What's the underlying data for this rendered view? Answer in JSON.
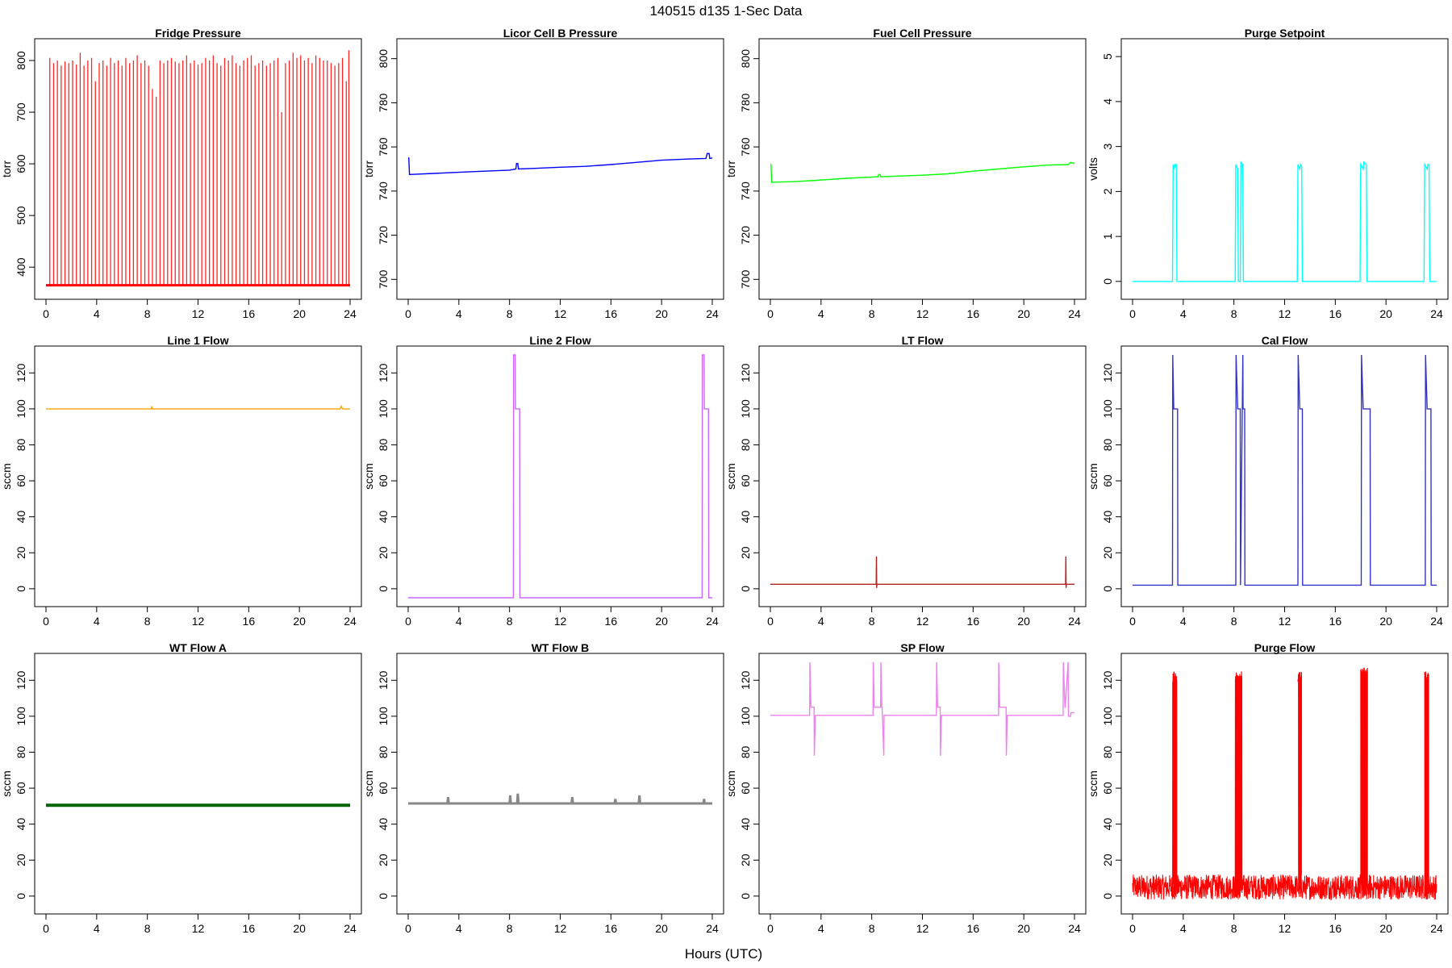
{
  "page": {
    "title": "140515   d135   1-Sec Data",
    "xlabel": "Hours (UTC)"
  },
  "chart_data": [
    {
      "type": "line",
      "title": "Fridge Pressure",
      "ylabel": "torr",
      "color": "#ff0000",
      "xlim": [
        0,
        24
      ],
      "ylim": [
        355,
        825
      ],
      "xticks": [
        "0",
        "4",
        "8",
        "12",
        "16",
        "20",
        "24"
      ],
      "yticks": [
        400,
        500,
        600,
        700,
        800
      ],
      "pattern": "repeating spikes from ~365 torr baseline to ~800 torr, roughly 4 per hour",
      "series": [
        {
          "x": [
            0,
            24
          ],
          "y": [
            365,
            365
          ],
          "kind": "baseline"
        }
      ],
      "spikes": {
        "x": [
          0.3,
          0.6,
          0.9,
          1.2,
          1.5,
          1.8,
          2.1,
          2.4,
          2.7,
          3.0,
          3.3,
          3.6,
          3.9,
          4.2,
          4.5,
          4.8,
          5.1,
          5.4,
          5.7,
          6.0,
          6.3,
          6.6,
          6.9,
          7.2,
          7.5,
          7.8,
          8.1,
          8.4,
          8.7,
          9.0,
          9.3,
          9.6,
          9.9,
          10.2,
          10.5,
          10.8,
          11.1,
          11.4,
          11.7,
          12.0,
          12.3,
          12.6,
          12.9,
          13.2,
          13.5,
          13.8,
          14.1,
          14.4,
          14.7,
          15.0,
          15.3,
          15.6,
          15.9,
          16.2,
          16.5,
          16.8,
          17.1,
          17.4,
          17.7,
          18.0,
          18.3,
          18.6,
          18.9,
          19.2,
          19.5,
          19.8,
          20.1,
          20.4,
          20.7,
          21.0,
          21.3,
          21.6,
          21.9,
          22.2,
          22.5,
          22.8,
          23.1,
          23.4,
          23.7,
          23.9
        ],
        "y": [
          805,
          795,
          800,
          790,
          798,
          795,
          800,
          792,
          815,
          790,
          800,
          805,
          760,
          795,
          800,
          790,
          805,
          795,
          800,
          790,
          805,
          795,
          800,
          810,
          795,
          800,
          790,
          745,
          730,
          800,
          795,
          800,
          805,
          798,
          795,
          800,
          810,
          795,
          800,
          792,
          795,
          805,
          800,
          810,
          795,
          790,
          805,
          800,
          810,
          795,
          790,
          800,
          805,
          810,
          790,
          795,
          800,
          790,
          795,
          800,
          805,
          700,
          795,
          800,
          815,
          805,
          810,
          800,
          805,
          795,
          810,
          805,
          800,
          800,
          795,
          790,
          795,
          805,
          760,
          820
        ]
      }
    },
    {
      "type": "line",
      "title": "Licor Cell B Pressure",
      "ylabel": "torr",
      "color": "#0000ff",
      "xlim": [
        0,
        24
      ],
      "ylim": [
        695,
        805
      ],
      "xticks": [
        "0",
        "4",
        "8",
        "12",
        "16",
        "20",
        "24"
      ],
      "yticks": [
        700,
        720,
        740,
        760,
        780,
        800
      ],
      "series": [
        {
          "x": [
            0,
            0.05,
            0.1,
            2,
            4,
            6,
            8,
            8.5,
            8.55,
            8.65,
            8.7,
            10,
            12,
            14,
            16,
            18,
            20,
            22,
            23.5,
            23.6,
            23.75,
            23.8,
            24
          ],
          "y": [
            755,
            755,
            747.5,
            748,
            748.5,
            749,
            749.5,
            750,
            752.5,
            752.5,
            750,
            750.3,
            750.8,
            751.2,
            752,
            753,
            754,
            754.5,
            754.8,
            757,
            757,
            754.8,
            755
          ]
        }
      ]
    },
    {
      "type": "line",
      "title": "Fuel Cell Pressure",
      "ylabel": "torr",
      "color": "#00ff00",
      "xlim": [
        0,
        24
      ],
      "ylim": [
        695,
        805
      ],
      "xticks": [
        "0",
        "4",
        "8",
        "12",
        "16",
        "20",
        "24"
      ],
      "yticks": [
        700,
        720,
        740,
        760,
        780,
        800
      ],
      "series": [
        {
          "x": [
            0,
            0.05,
            0.1,
            2,
            4,
            6,
            8,
            8.5,
            8.55,
            8.65,
            8.7,
            10,
            12,
            14,
            16,
            18,
            20,
            22,
            23.5,
            23.7,
            24
          ],
          "y": [
            752,
            752,
            744,
            744.3,
            745,
            745.8,
            746.3,
            746.5,
            747.5,
            747.5,
            746.5,
            746.8,
            747.2,
            747.8,
            749,
            750,
            751,
            751.8,
            752,
            753,
            752.5
          ]
        }
      ]
    },
    {
      "type": "line",
      "title": "Purge Setpoint",
      "ylabel": "volts",
      "color": "#00ffff",
      "xlim": [
        0,
        24
      ],
      "ylim": [
        -0.2,
        5.2
      ],
      "xticks": [
        "0",
        "4",
        "8",
        "12",
        "16",
        "20",
        "24"
      ],
      "yticks": [
        0,
        1,
        2,
        3,
        4,
        5
      ],
      "series": [
        {
          "x": [
            0,
            3.15,
            3.2,
            3.3,
            3.35,
            3.45,
            3.5,
            8.1,
            8.15,
            8.3,
            8.35,
            8.5,
            8.55,
            8.7,
            8.75,
            13.0,
            13.05,
            13.2,
            13.25,
            13.35,
            13.4,
            17.95,
            18.0,
            18.2,
            18.25,
            18.45,
            18.5,
            23.0,
            23.05,
            23.25,
            23.3,
            23.4,
            23.45,
            24
          ],
          "y": [
            0,
            0,
            2.6,
            2.5,
            2.6,
            2.6,
            0,
            0,
            2.6,
            2.5,
            0,
            0,
            2.65,
            2.6,
            0,
            0,
            2.6,
            2.5,
            2.6,
            2.55,
            0,
            0,
            2.6,
            2.5,
            2.65,
            2.6,
            0,
            0,
            2.6,
            2.5,
            2.6,
            2.6,
            0,
            0
          ]
        }
      ]
    },
    {
      "type": "line",
      "title": "Line 1 Flow",
      "ylabel": "sccm",
      "color": "#ffa500",
      "xlim": [
        0,
        24
      ],
      "ylim": [
        -5,
        130
      ],
      "xticks": [
        "0",
        "4",
        "8",
        "12",
        "16",
        "20",
        "24"
      ],
      "yticks": [
        0,
        20,
        40,
        60,
        80,
        100,
        120
      ],
      "series": [
        {
          "x": [
            0,
            8.3,
            8.35,
            8.4,
            12,
            16,
            20,
            23.2,
            23.3,
            23.4,
            24
          ],
          "y": [
            100,
            100,
            101.5,
            100,
            100,
            100,
            100,
            100,
            101.5,
            100,
            100
          ]
        }
      ]
    },
    {
      "type": "line",
      "title": "Line 2 Flow",
      "ylabel": "sccm",
      "color": "#cc66ff",
      "xlim": [
        0,
        24
      ],
      "ylim": [
        -5,
        130
      ],
      "xticks": [
        "0",
        "4",
        "8",
        "12",
        "16",
        "20",
        "24"
      ],
      "yticks": [
        0,
        20,
        40,
        60,
        80,
        100,
        120
      ],
      "series": [
        {
          "x": [
            0,
            8.3,
            8.32,
            8.45,
            8.47,
            8.8,
            8.82,
            23.2,
            23.22,
            23.35,
            23.37,
            23.7,
            23.72,
            24
          ],
          "y": [
            -5,
            -5,
            130,
            130,
            100,
            100,
            -5,
            -5,
            130,
            130,
            100,
            100,
            -5,
            -5
          ]
        }
      ]
    },
    {
      "type": "line",
      "title": "LT Flow",
      "ylabel": "sccm",
      "color": "#b22222",
      "xlim": [
        0,
        24
      ],
      "ylim": [
        -5,
        130
      ],
      "xticks": [
        "0",
        "4",
        "8",
        "12",
        "16",
        "20",
        "24"
      ],
      "yticks": [
        0,
        20,
        40,
        60,
        80,
        100,
        120
      ],
      "series": [
        {
          "x": [
            0,
            8.35,
            8.37,
            8.39,
            8.41,
            23.3,
            23.32,
            23.34,
            23.36,
            24
          ],
          "y": [
            2.5,
            2.5,
            18,
            0.5,
            2.5,
            2.5,
            18,
            0.5,
            2.5,
            2.5
          ]
        }
      ]
    },
    {
      "type": "line",
      "title": "Cal Flow",
      "ylabel": "sccm",
      "color": "#3333cc",
      "xlim": [
        0,
        24
      ],
      "ylim": [
        -5,
        130
      ],
      "xticks": [
        "0",
        "4",
        "8",
        "12",
        "16",
        "20",
        "24"
      ],
      "yticks": [
        0,
        20,
        40,
        60,
        80,
        100,
        120
      ],
      "series": [
        {
          "x": [
            0,
            3.15,
            3.17,
            3.25,
            3.27,
            3.55,
            3.57,
            8.15,
            8.17,
            8.3,
            8.32,
            8.5,
            8.52,
            8.7,
            8.72,
            8.85,
            8.87,
            13.05,
            13.07,
            13.2,
            13.22,
            13.4,
            13.42,
            18.05,
            18.07,
            18.2,
            18.22,
            18.75,
            18.77,
            23.1,
            23.12,
            23.25,
            23.27,
            23.55,
            23.57,
            24
          ],
          "y": [
            2,
            2,
            130,
            100,
            100,
            100,
            2,
            2,
            130,
            100,
            100,
            100,
            2,
            130,
            100,
            100,
            2,
            2,
            130,
            100,
            100,
            100,
            2,
            2,
            130,
            100,
            100,
            100,
            2,
            2,
            130,
            100,
            100,
            100,
            2,
            2
          ]
        }
      ]
    },
    {
      "type": "line",
      "title": "WT Flow A",
      "ylabel": "sccm",
      "color": "#006400",
      "xlim": [
        0,
        24
      ],
      "ylim": [
        -5,
        130
      ],
      "xticks": [
        "0",
        "4",
        "8",
        "12",
        "16",
        "20",
        "24"
      ],
      "yticks": [
        0,
        20,
        40,
        60,
        80,
        100,
        120
      ],
      "series": [
        {
          "x": [
            0,
            24
          ],
          "y": [
            50.5,
            50.5
          ]
        }
      ]
    },
    {
      "type": "line",
      "title": "WT Flow B",
      "ylabel": "sccm",
      "color": "#888888",
      "xlim": [
        0,
        24
      ],
      "ylim": [
        -5,
        130
      ],
      "xticks": [
        "0",
        "4",
        "8",
        "12",
        "16",
        "20",
        "24"
      ],
      "yticks": [
        0,
        20,
        40,
        60,
        80,
        100,
        120
      ],
      "series": [
        {
          "x": [
            0,
            3.1,
            3.15,
            3.2,
            8.0,
            8.05,
            8.1,
            8.6,
            8.65,
            8.7,
            12.9,
            12.95,
            13.0,
            16.3,
            16.35,
            16.4,
            18.2,
            18.25,
            18.3,
            23.3,
            23.35,
            23.4,
            24
          ],
          "y": [
            51.5,
            51.5,
            55,
            51.5,
            51.5,
            56,
            51.5,
            51.5,
            57,
            51.5,
            51.5,
            55,
            51.5,
            51.5,
            54,
            51.5,
            51.5,
            56,
            51.5,
            51.5,
            54,
            51.5,
            51.5
          ]
        }
      ]
    },
    {
      "type": "line",
      "title": "SP Flow",
      "ylabel": "sccm",
      "color": "#ee82ee",
      "xlim": [
        0,
        24
      ],
      "ylim": [
        -5,
        130
      ],
      "xticks": [
        "0",
        "4",
        "8",
        "12",
        "16",
        "20",
        "24"
      ],
      "yticks": [
        0,
        20,
        40,
        60,
        80,
        100,
        120
      ],
      "series": [
        {
          "x": [
            0,
            3.1,
            3.12,
            3.2,
            3.22,
            3.45,
            3.47,
            3.55,
            3.57,
            8.1,
            8.12,
            8.2,
            8.22,
            8.7,
            8.72,
            8.8,
            8.82,
            8.95,
            8.97,
            13.1,
            13.12,
            13.2,
            13.22,
            13.4,
            13.42,
            13.5,
            13.52,
            18.0,
            18.02,
            18.1,
            18.12,
            18.6,
            18.62,
            18.7,
            18.72,
            23.1,
            23.12,
            23.25,
            23.27,
            23.5,
            23.52,
            23.7,
            23.72,
            24
          ],
          "y": [
            100.5,
            100.5,
            130,
            105,
            105,
            105,
            78,
            100.5,
            100.5,
            100.5,
            130,
            105,
            105,
            105,
            130,
            105,
            105,
            78,
            100.5,
            100.5,
            130,
            105,
            105,
            105,
            78,
            100.5,
            100.5,
            100.5,
            130,
            105,
            105,
            105,
            78,
            100.5,
            100.5,
            100.5,
            130,
            105,
            105,
            130,
            100,
            100,
            102,
            102
          ]
        }
      ]
    },
    {
      "type": "line",
      "title": "Purge Flow",
      "ylabel": "sccm",
      "color": "#ff0000",
      "xlim": [
        0,
        24
      ],
      "ylim": [
        -5,
        130
      ],
      "xticks": [
        "0",
        "4",
        "8",
        "12",
        "16",
        "20",
        "24"
      ],
      "yticks": [
        0,
        20,
        40,
        60,
        80,
        100,
        120
      ],
      "pattern": "dense noisy band between about -2 and 12 sccm with bursts to ~125 sccm",
      "noise_band": {
        "low": -2,
        "high": 12
      },
      "bursts": [
        {
          "start": 3.15,
          "end": 3.5,
          "level": 125
        },
        {
          "start": 8.1,
          "end": 8.65,
          "level": 125
        },
        {
          "start": 13.05,
          "end": 13.35,
          "level": 125
        },
        {
          "start": 18.0,
          "end": 18.55,
          "level": 127
        },
        {
          "start": 23.05,
          "end": 23.4,
          "level": 125
        }
      ]
    }
  ]
}
